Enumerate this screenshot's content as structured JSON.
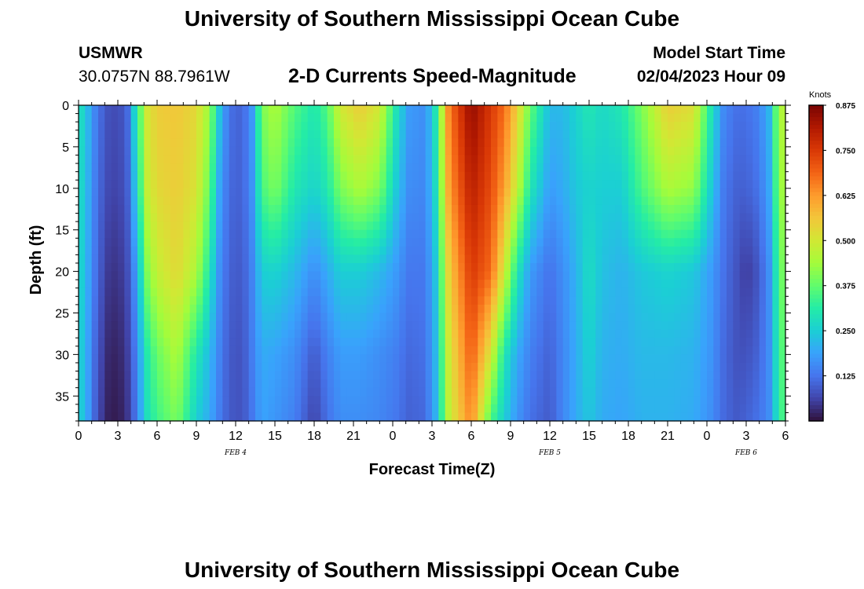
{
  "header": {
    "title": "University of Southern Mississippi Ocean Cube",
    "station_id": "USMWR",
    "coords": "30.0757N  88.7961W",
    "subtitle": "2-D Currents Speed-Magnitude",
    "model_start_label": "Model Start Time",
    "model_start_value": "02/04/2023 Hour 09"
  },
  "footer": {
    "title": "University of Southern Mississippi Ocean Cube"
  },
  "colors": {
    "scale": [
      "#30123b",
      "#4145ab",
      "#4675ed",
      "#39a2fc",
      "#1bcfd4",
      "#24eca6",
      "#61fc6c",
      "#a4fc3b",
      "#d1e834",
      "#f3c63a",
      "#fe9b2d",
      "#f36315",
      "#d93806",
      "#b11901",
      "#7a0403"
    ]
  },
  "chart_data": {
    "type": "heatmap",
    "title": "2-D Currents Speed-Magnitude",
    "xlabel": "Forecast Time(Z)",
    "ylabel": "Depth (ft)",
    "x_hours_range": [
      0,
      54
    ],
    "x_ticks": [
      {
        "h": 0,
        "label": "0"
      },
      {
        "h": 3,
        "label": "3"
      },
      {
        "h": 6,
        "label": "6"
      },
      {
        "h": 9,
        "label": "9"
      },
      {
        "h": 12,
        "label": "12"
      },
      {
        "h": 15,
        "label": "15"
      },
      {
        "h": 18,
        "label": "18"
      },
      {
        "h": 21,
        "label": "21"
      },
      {
        "h": 24,
        "label": "0"
      },
      {
        "h": 27,
        "label": "3"
      },
      {
        "h": 30,
        "label": "6"
      },
      {
        "h": 33,
        "label": "9"
      },
      {
        "h": 36,
        "label": "12"
      },
      {
        "h": 39,
        "label": "15"
      },
      {
        "h": 42,
        "label": "18"
      },
      {
        "h": 45,
        "label": "21"
      },
      {
        "h": 48,
        "label": "0"
      },
      {
        "h": 51,
        "label": "3"
      },
      {
        "h": 54,
        "label": "6"
      }
    ],
    "date_labels": [
      {
        "h": 12,
        "label": "FEB 4"
      },
      {
        "h": 36,
        "label": "FEB 5"
      },
      {
        "h": 51,
        "label": "FEB 6"
      }
    ],
    "y_range_ft": [
      0,
      38
    ],
    "y_ticks": [
      {
        "v": 0,
        "label": "0"
      },
      {
        "v": 5,
        "label": "5"
      },
      {
        "v": 10,
        "label": "10"
      },
      {
        "v": 15,
        "label": "15"
      },
      {
        "v": 20,
        "label": "20"
      },
      {
        "v": 25,
        "label": "25"
      },
      {
        "v": 30,
        "label": "30"
      },
      {
        "v": 35,
        "label": "35"
      }
    ],
    "colorbar": {
      "unit": "Knots",
      "range": [
        0,
        0.875
      ],
      "ticks": [
        {
          "v": 0.875,
          "label": "0.875"
        },
        {
          "v": 0.75,
          "label": "0.750"
        },
        {
          "v": 0.625,
          "label": "0.625"
        },
        {
          "v": 0.5,
          "label": "0.500"
        },
        {
          "v": 0.375,
          "label": "0.375"
        },
        {
          "v": 0.25,
          "label": "0.250"
        },
        {
          "v": 0.125,
          "label": "0.125"
        }
      ]
    },
    "speed_profile_knots": {
      "depth_samples_ft": [
        0,
        10,
        20,
        30,
        38
      ],
      "columns": [
        {
          "h": 0.0,
          "s": [
            0.3,
            0.29,
            0.28,
            0.27,
            0.27
          ]
        },
        {
          "h": 0.7,
          "s": [
            0.22,
            0.21,
            0.2,
            0.19,
            0.19
          ]
        },
        {
          "h": 1.4,
          "s": [
            0.13,
            0.12,
            0.11,
            0.09,
            0.08
          ]
        },
        {
          "h": 2.2,
          "s": [
            0.08,
            0.07,
            0.05,
            0.03,
            0.02
          ]
        },
        {
          "h": 3.0,
          "s": [
            0.07,
            0.06,
            0.04,
            0.02,
            0.01
          ]
        },
        {
          "h": 3.7,
          "s": [
            0.1,
            0.09,
            0.07,
            0.05,
            0.04
          ]
        },
        {
          "h": 4.4,
          "s": [
            0.3,
            0.25,
            0.18,
            0.14,
            0.13
          ]
        },
        {
          "h": 5.2,
          "s": [
            0.5,
            0.48,
            0.4,
            0.3,
            0.28
          ]
        },
        {
          "h": 6.0,
          "s": [
            0.55,
            0.53,
            0.48,
            0.38,
            0.34
          ]
        },
        {
          "h": 7.5,
          "s": [
            0.56,
            0.55,
            0.53,
            0.45,
            0.4
          ]
        },
        {
          "h": 9.0,
          "s": [
            0.53,
            0.51,
            0.45,
            0.3,
            0.25
          ]
        },
        {
          "h": 10.0,
          "s": [
            0.43,
            0.38,
            0.3,
            0.22,
            0.2
          ]
        },
        {
          "h": 10.7,
          "s": [
            0.25,
            0.2,
            0.17,
            0.15,
            0.14
          ]
        },
        {
          "h": 11.5,
          "s": [
            0.12,
            0.11,
            0.1,
            0.09,
            0.09
          ]
        },
        {
          "h": 12.5,
          "s": [
            0.1,
            0.1,
            0.09,
            0.08,
            0.08
          ]
        },
        {
          "h": 13.3,
          "s": [
            0.18,
            0.17,
            0.15,
            0.14,
            0.13
          ]
        },
        {
          "h": 14.0,
          "s": [
            0.4,
            0.35,
            0.25,
            0.2,
            0.19
          ]
        },
        {
          "h": 15.0,
          "s": [
            0.45,
            0.4,
            0.26,
            0.19,
            0.17
          ]
        },
        {
          "h": 16.5,
          "s": [
            0.36,
            0.3,
            0.22,
            0.16,
            0.14
          ]
        },
        {
          "h": 18.0,
          "s": [
            0.3,
            0.26,
            0.16,
            0.09,
            0.06
          ]
        },
        {
          "h": 19.0,
          "s": [
            0.36,
            0.3,
            0.2,
            0.14,
            0.12
          ]
        },
        {
          "h": 20.0,
          "s": [
            0.5,
            0.4,
            0.25,
            0.18,
            0.16
          ]
        },
        {
          "h": 21.5,
          "s": [
            0.55,
            0.45,
            0.25,
            0.18,
            0.16
          ]
        },
        {
          "h": 23.0,
          "s": [
            0.5,
            0.4,
            0.22,
            0.16,
            0.15
          ]
        },
        {
          "h": 24.2,
          "s": [
            0.3,
            0.25,
            0.18,
            0.14,
            0.13
          ]
        },
        {
          "h": 25.2,
          "s": [
            0.18,
            0.16,
            0.13,
            0.11,
            0.1
          ]
        },
        {
          "h": 26.5,
          "s": [
            0.16,
            0.15,
            0.13,
            0.12,
            0.11
          ]
        },
        {
          "h": 27.3,
          "s": [
            0.3,
            0.28,
            0.24,
            0.22,
            0.21
          ]
        },
        {
          "h": 28.3,
          "s": [
            0.66,
            0.62,
            0.55,
            0.5,
            0.48
          ]
        },
        {
          "h": 30.0,
          "s": [
            0.85,
            0.8,
            0.75,
            0.7,
            0.65
          ]
        },
        {
          "h": 31.5,
          "s": [
            0.75,
            0.72,
            0.68,
            0.5,
            0.35
          ]
        },
        {
          "h": 32.5,
          "s": [
            0.68,
            0.62,
            0.5,
            0.3,
            0.25
          ]
        },
        {
          "h": 33.5,
          "s": [
            0.55,
            0.48,
            0.3,
            0.2,
            0.17
          ]
        },
        {
          "h": 34.5,
          "s": [
            0.38,
            0.3,
            0.18,
            0.14,
            0.12
          ]
        },
        {
          "h": 36.0,
          "s": [
            0.22,
            0.18,
            0.12,
            0.1,
            0.09
          ]
        },
        {
          "h": 37.0,
          "s": [
            0.22,
            0.2,
            0.16,
            0.15,
            0.15
          ]
        },
        {
          "h": 38.0,
          "s": [
            0.26,
            0.24,
            0.21,
            0.2,
            0.2
          ]
        },
        {
          "h": 39.0,
          "s": [
            0.3,
            0.26,
            0.28,
            0.26,
            0.24
          ]
        },
        {
          "h": 40.0,
          "s": [
            0.27,
            0.25,
            0.23,
            0.21,
            0.2
          ]
        },
        {
          "h": 41.5,
          "s": [
            0.3,
            0.25,
            0.21,
            0.2,
            0.19
          ]
        },
        {
          "h": 43.0,
          "s": [
            0.4,
            0.35,
            0.24,
            0.22,
            0.21
          ]
        },
        {
          "h": 45.0,
          "s": [
            0.55,
            0.45,
            0.26,
            0.22,
            0.21
          ]
        },
        {
          "h": 47.0,
          "s": [
            0.52,
            0.42,
            0.24,
            0.21,
            0.2
          ]
        },
        {
          "h": 48.3,
          "s": [
            0.3,
            0.25,
            0.18,
            0.17,
            0.16
          ]
        },
        {
          "h": 49.3,
          "s": [
            0.15,
            0.13,
            0.12,
            0.11,
            0.11
          ]
        },
        {
          "h": 50.3,
          "s": [
            0.12,
            0.1,
            0.08,
            0.08,
            0.09
          ]
        },
        {
          "h": 51.0,
          "s": [
            0.12,
            0.1,
            0.05,
            0.08,
            0.1
          ]
        },
        {
          "h": 51.8,
          "s": [
            0.14,
            0.12,
            0.08,
            0.1,
            0.12
          ]
        },
        {
          "h": 52.7,
          "s": [
            0.2,
            0.18,
            0.15,
            0.15,
            0.15
          ]
        },
        {
          "h": 53.3,
          "s": [
            0.38,
            0.35,
            0.3,
            0.28,
            0.27
          ]
        },
        {
          "h": 54.0,
          "s": [
            0.5,
            0.48,
            0.44,
            0.4,
            0.38
          ]
        }
      ]
    }
  }
}
